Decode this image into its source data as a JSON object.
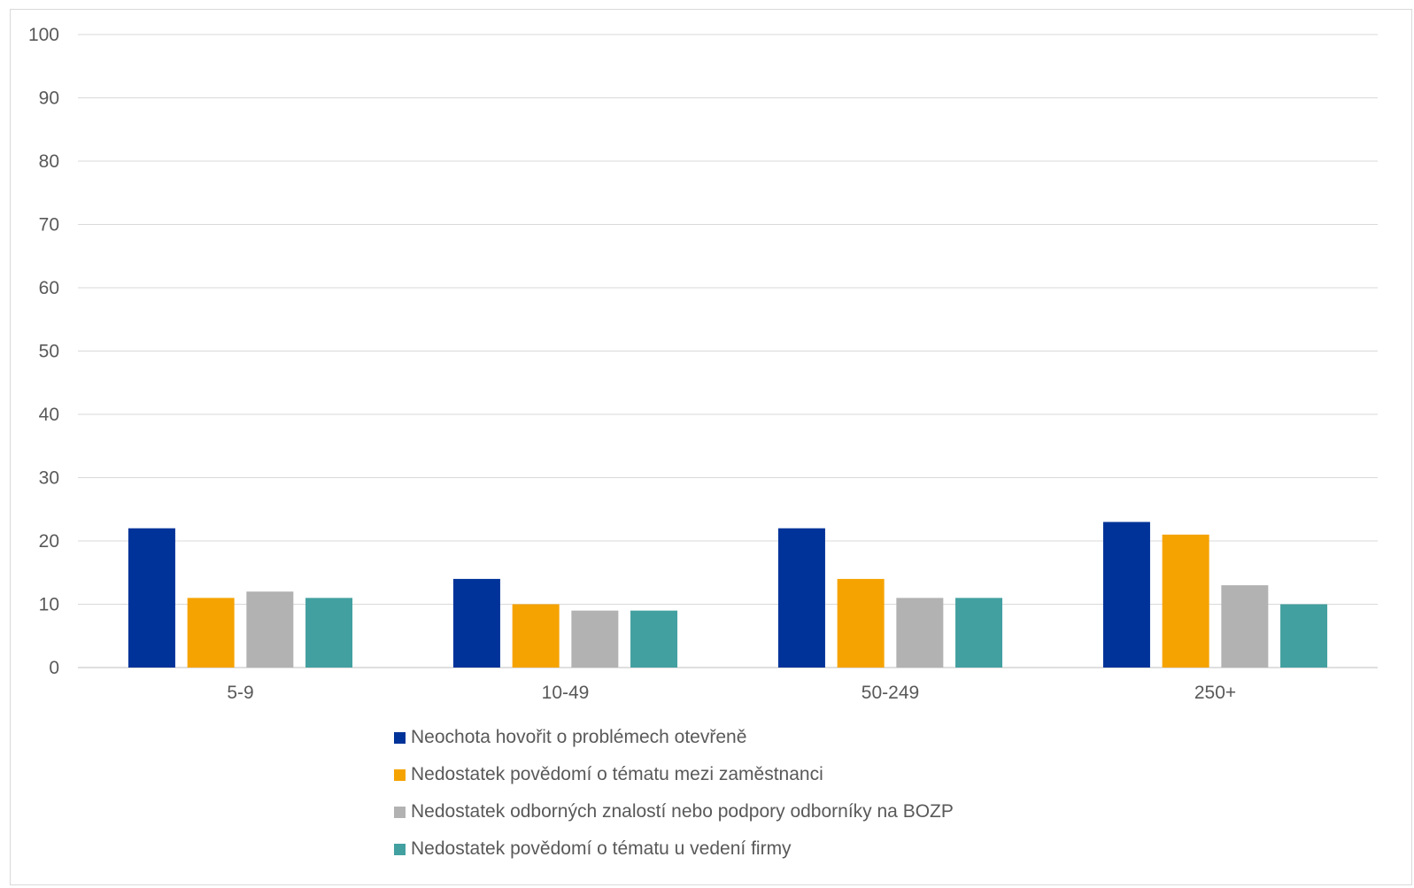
{
  "chart_data": {
    "type": "bar",
    "title": "",
    "xlabel": "",
    "ylabel": "",
    "ylim": [
      0,
      100
    ],
    "yticks": [
      0,
      10,
      20,
      30,
      40,
      50,
      60,
      70,
      80,
      90,
      100
    ],
    "grid": true,
    "legend_position": "bottom",
    "categories": [
      "5-9",
      "10-49",
      "50-249",
      "250+"
    ],
    "series": [
      {
        "name": "Neochota hovořit o problémech otevřeně",
        "color": "#003399",
        "values": [
          22,
          14,
          22,
          23
        ]
      },
      {
        "name": "Nedostatek povědomí o tématu mezi zaměstnanci",
        "color": "#f5a300",
        "values": [
          11,
          10,
          14,
          21
        ]
      },
      {
        "name": "Nedostatek odborných znalostí nebo podpory odborníky na BOZP",
        "color": "#b2b2b2",
        "values": [
          12,
          9,
          11,
          13
        ]
      },
      {
        "name": "Nedostatek povědomí o tématu u vedení firmy",
        "color": "#43a0a0",
        "values": [
          11,
          9,
          11,
          10
        ]
      }
    ]
  }
}
